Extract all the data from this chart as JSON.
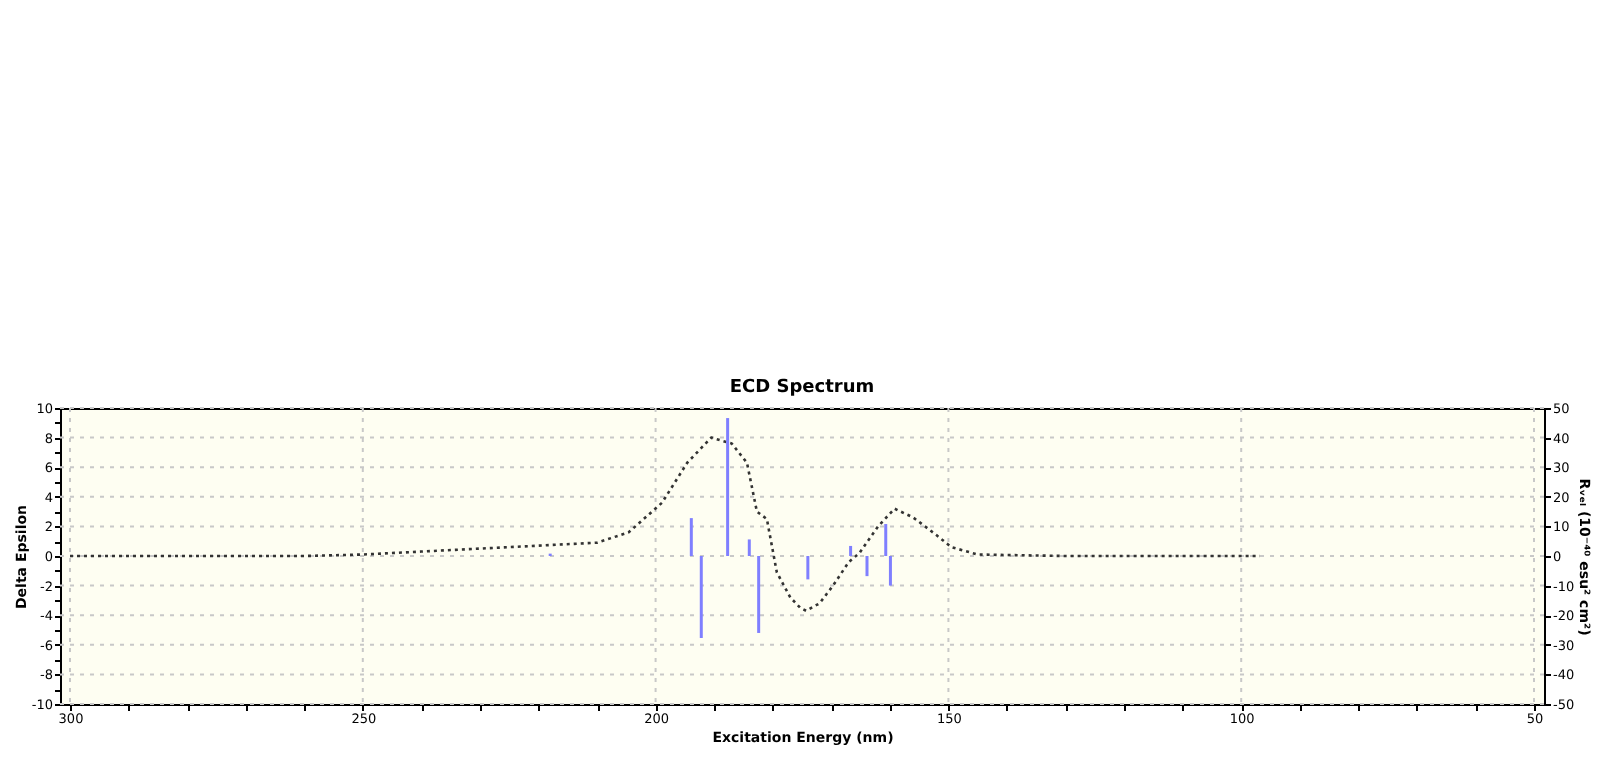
{
  "chart_data": {
    "type": "line",
    "title": "ECD Spectrum",
    "xlabel": "Excitation Energy (nm)",
    "ylabel": "Delta Epsilon",
    "y2label": "Rᵥₑₗ (10⁻⁴⁰ esu² cm²)",
    "xlim": [
      300,
      50
    ],
    "xticks": [
      300,
      {
        "value": 290,
        "label": null
      },
      {
        "value": 280,
        "label": null
      },
      {
        "value": 270,
        "label": null
      },
      {
        "value": 260,
        "label": null
      },
      250,
      {
        "value": 240,
        "label": null
      },
      {
        "value": 230,
        "label": null
      },
      {
        "value": 220,
        "label": null
      },
      {
        "value": 210,
        "label": null
      },
      200,
      {
        "value": 190,
        "label": null
      },
      {
        "value": 180,
        "label": null
      },
      {
        "value": 170,
        "label": null
      },
      {
        "value": 160,
        "label": null
      },
      150,
      {
        "value": 140,
        "label": null
      },
      {
        "value": 130,
        "label": null
      },
      {
        "value": 120,
        "label": null
      },
      {
        "value": 110,
        "label": null
      },
      100,
      {
        "value": 90,
        "label": null
      },
      {
        "value": 80,
        "label": null
      },
      {
        "value": 70,
        "label": null
      },
      {
        "value": 60,
        "label": null
      },
      50
    ],
    "ylim": [
      -10,
      10
    ],
    "yticks": [
      -10,
      {
        "value": -9,
        "label": null
      },
      -8,
      {
        "value": -7,
        "label": null
      },
      -6,
      {
        "value": -5,
        "label": null
      },
      -4,
      {
        "value": -3,
        "label": null
      },
      -2,
      {
        "value": -1,
        "label": null
      },
      0,
      {
        "value": 1,
        "label": null
      },
      2,
      {
        "value": 3,
        "label": null
      },
      4,
      {
        "value": 5,
        "label": null
      },
      6,
      {
        "value": 7,
        "label": null
      },
      8,
      {
        "value": 9,
        "label": null
      },
      10
    ],
    "y2lim": [
      -50,
      50
    ],
    "y2ticks": [
      -50,
      -40,
      -30,
      -20,
      -10,
      0,
      10,
      20,
      30,
      40,
      50
    ],
    "grid": true,
    "legend": false,
    "series": [
      {
        "color": "#333333",
        "line_style": "dotted",
        "x": [
          300,
          280,
          260,
          250,
          240,
          230,
          220,
          210,
          204.6,
          200.6,
          198.9,
          194.6,
          190.5,
          187,
          184.4,
          182.7,
          181,
          179.3,
          177,
          175.3,
          174.3,
          172,
          169.7,
          167,
          165.2,
          162,
          159.2,
          156,
          152,
          149.5,
          145,
          130,
          110,
          96.8
        ],
        "values": [
          0,
          0,
          0,
          0.1,
          0.3,
          0.5,
          0.7,
          0.9,
          1.6,
          3.0,
          3.6,
          6.3,
          8.0,
          7.6,
          6.3,
          3.0,
          2.5,
          -1.1,
          -2.8,
          -3.5,
          -3.7,
          -3.2,
          -2.0,
          -0.4,
          0.2,
          2.0,
          3.2,
          2.6,
          1.4,
          0.6,
          0.1,
          0,
          0,
          0
        ]
      },
      {
        "type": "bar",
        "axis": "y2",
        "color": "#7f7fff",
        "x": [
          218,
          193.9,
          192.2,
          187.7,
          184,
          182.4,
          174,
          166.7,
          163.9,
          160.7,
          159.9
        ],
        "values": [
          0.8,
          12.8,
          -27.7,
          46.6,
          5.6,
          -26,
          -7.9,
          3.4,
          -6.8,
          10.8,
          -10
        ]
      }
    ]
  }
}
